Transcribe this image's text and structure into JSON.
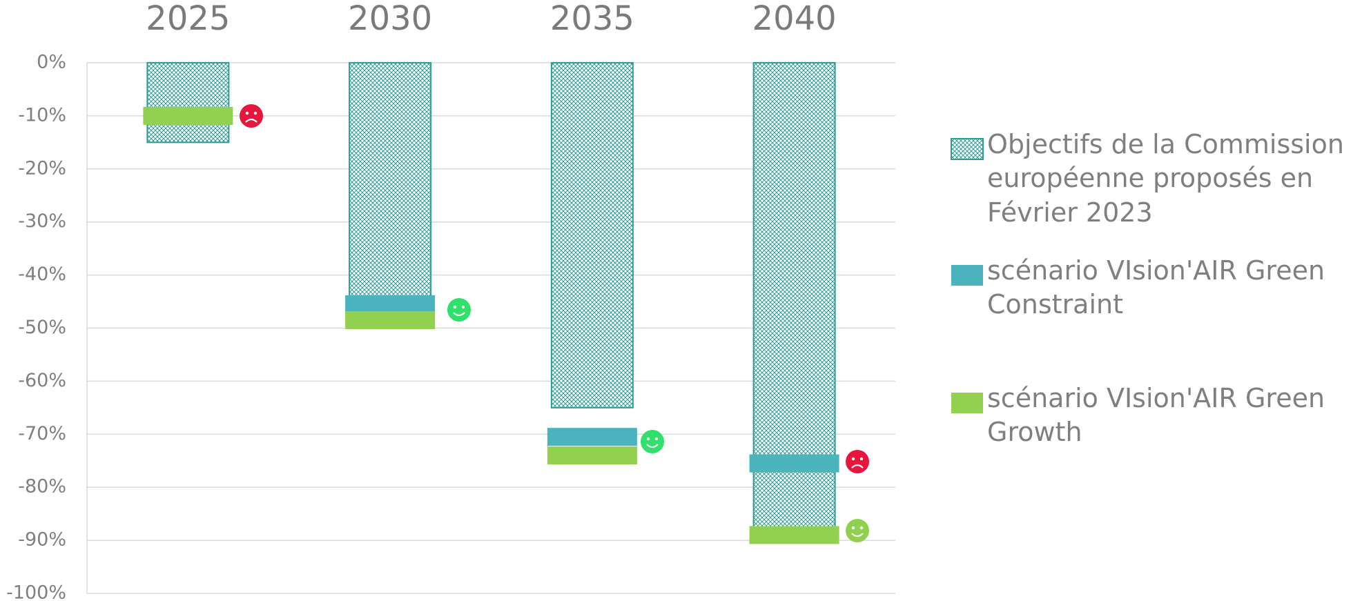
{
  "chart_data": {
    "type": "bar",
    "categories": [
      "2025",
      "2030",
      "2035",
      "2040"
    ],
    "series": [
      {
        "name": "Objectifs de la Commission européenne proposés en Février 2023",
        "color": "#2e9c95",
        "values": [
          -15,
          -45,
          -65,
          -90
        ]
      },
      {
        "name": "scénario VIsion'AIR Green Constraint",
        "color": "#4bb3bb",
        "values": [
          null,
          -45.5,
          -70.5,
          -75.5
        ]
      },
      {
        "name": "scénario VIsion'AIR Green Growth",
        "color": "#92d050",
        "values": [
          -10,
          -48.5,
          -74,
          -89
        ]
      }
    ],
    "ylim": [
      -100,
      0
    ],
    "yticks": [
      {
        "value": 0,
        "label": "0%"
      },
      {
        "value": -10,
        "label": "-10%"
      },
      {
        "value": -20,
        "label": "-20%"
      },
      {
        "value": -30,
        "label": "-30%"
      },
      {
        "value": -40,
        "label": "-40%"
      },
      {
        "value": -50,
        "label": "-50%"
      },
      {
        "value": -60,
        "label": "-60%"
      },
      {
        "value": -70,
        "label": "-70%"
      },
      {
        "value": -80,
        "label": "-80%"
      },
      {
        "value": -90,
        "label": "-90%"
      },
      {
        "value": -100,
        "label": "-100%"
      }
    ],
    "grid": true
  }
}
